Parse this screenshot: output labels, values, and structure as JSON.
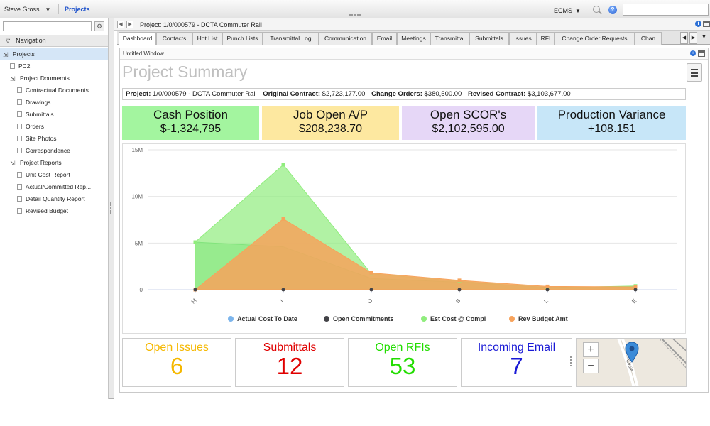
{
  "topbar": {
    "user": "Steve Gross",
    "projects_link": "Projects",
    "ecms": "ECMS"
  },
  "sidebar": {
    "heading": "Navigation",
    "items": [
      {
        "label": "Projects",
        "level": 0,
        "icon": "folder-open-icon",
        "selected": true
      },
      {
        "label": "PC2",
        "level": 1,
        "icon": "document-icon"
      },
      {
        "label": "Project Doumemts",
        "level": 1,
        "icon": "folder-open-icon"
      },
      {
        "label": "Contractual Documents",
        "level": 2,
        "icon": "document-icon"
      },
      {
        "label": "Drawings",
        "level": 2,
        "icon": "document-icon"
      },
      {
        "label": "Submittals",
        "level": 2,
        "icon": "document-icon"
      },
      {
        "label": "Orders",
        "level": 2,
        "icon": "document-icon"
      },
      {
        "label": "Site Photos",
        "level": 2,
        "icon": "document-icon"
      },
      {
        "label": "Correspondence",
        "level": 2,
        "icon": "document-icon"
      },
      {
        "label": "Project Reports",
        "level": 1,
        "icon": "folder-open-icon"
      },
      {
        "label": "Unit Cost Report",
        "level": 2,
        "icon": "document-icon"
      },
      {
        "label": "Actual/Committed Rep...",
        "level": 2,
        "icon": "document-icon"
      },
      {
        "label": "Detail Quantity Report",
        "level": 2,
        "icon": "document-icon"
      },
      {
        "label": "Revised Budget",
        "level": 2,
        "icon": "document-icon"
      }
    ]
  },
  "main": {
    "title": "Project: 1/0/000579 - DCTA Commuter Rail",
    "tabs": [
      "Dashboard",
      "Contacts",
      "Hot List",
      "Punch Lists",
      "Transmittal Log",
      "Communication",
      "Email",
      "Meetings",
      "Transmittal",
      "Submittals",
      "Issues",
      "RFI",
      "Change Order Requests",
      "Chan"
    ],
    "active_tab": "Dashboard"
  },
  "window": {
    "title": "Untitled Window",
    "summary_title": "Project Summary",
    "project_label": "Project:",
    "project_value": "1/0/000579 - DCTA Commuter Rail",
    "original_label": "Original Contract:",
    "original_value": "$2,723,177.00",
    "change_label": "Change Orders:",
    "change_value": "$380,500.00",
    "revised_label": "Revised Contract:",
    "revised_value": "$3,103,677.00"
  },
  "kpis": [
    {
      "label": "Cash Position",
      "value": "$-1,324,795",
      "color": "#a3f59f"
    },
    {
      "label": "Job Open A/P",
      "value": "$208,238.70",
      "color": "#fde8a0"
    },
    {
      "label": "Open SCOR's",
      "value": "$2,102,595.00",
      "color": "#e6d7f7"
    },
    {
      "label": "Production Variance",
      "value": "+108.151",
      "color": "#c7e6f8"
    }
  ],
  "chart_data": {
    "type": "area",
    "categories": [
      "M",
      "I",
      "O",
      "S",
      "L",
      "E"
    ],
    "y_ticks": [
      "0",
      "5M",
      "10M",
      "15M"
    ],
    "ylim": [
      0,
      15000000
    ],
    "legend_position": "bottom",
    "series": [
      {
        "name": "Actual Cost To Date",
        "color": "#7cb5ec",
        "values": [
          0,
          0,
          0,
          0,
          0,
          0
        ]
      },
      {
        "name": "Open Commitments",
        "color": "#434348",
        "values": [
          0,
          0,
          0,
          0,
          0,
          0
        ]
      },
      {
        "name": "Est Cost @ Compl",
        "color": "#90ed7d",
        "values": [
          5100000,
          13400000,
          1700000,
          900000,
          200000,
          400000
        ]
      },
      {
        "name": "Rev Budget Amt",
        "color": "#f7a35c",
        "values": [
          0,
          7600000,
          1800000,
          1000000,
          350000,
          300000
        ]
      }
    ],
    "hidden_series": [
      {
        "color": "#5fd17a",
        "values": [
          5100000,
          4600000,
          1200000,
          800000,
          250000,
          350000
        ]
      }
    ]
  },
  "stats": [
    {
      "label": "Open Issues",
      "value": "6",
      "color": "#f5b800"
    },
    {
      "label": "Submittals",
      "value": "12",
      "color": "#e00000"
    },
    {
      "label": "Open RFIs",
      "value": "53",
      "color": "#22dd00"
    },
    {
      "label": "Incoming Email",
      "value": "7",
      "color": "#1a1ad6"
    }
  ],
  "map": {
    "zoom_in": "+",
    "zoom_out": "−",
    "street_label": "Circle"
  }
}
